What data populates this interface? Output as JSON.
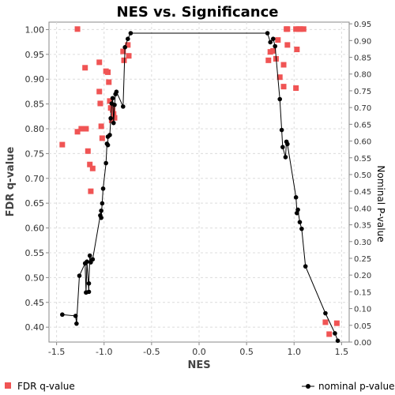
{
  "chart_data": {
    "type": "scatter",
    "title": "NES vs. Significance",
    "xlabel": "NES",
    "ylabel_left": "FDR q-value",
    "ylabel_right": "Nominal P-value",
    "xlim": [
      -1.58,
      1.58
    ],
    "ylim_left": [
      0.37,
      1.015
    ],
    "ylim_right": [
      0.0,
      0.955
    ],
    "x_ticks": [
      "-1.5",
      "-1.0",
      "-0.5",
      "0.0",
      "0.5",
      "1.0",
      "1.5"
    ],
    "y_ticks_left": [
      "0.40",
      "0.45",
      "0.50",
      "0.55",
      "0.60",
      "0.65",
      "0.70",
      "0.75",
      "0.80",
      "0.85",
      "0.90",
      "0.95",
      "1.00"
    ],
    "y_ticks_right": [
      "0.00",
      "0.05",
      "0.10",
      "0.15",
      "0.20",
      "0.25",
      "0.30",
      "0.35",
      "0.40",
      "0.45",
      "0.50",
      "0.55",
      "0.60",
      "0.65",
      "0.70",
      "0.75",
      "0.80",
      "0.85",
      "0.90",
      "0.95"
    ],
    "grid": true,
    "legend_position": "bottom",
    "colors": {
      "fdr": "#f05454",
      "nominal": "#000000"
    },
    "series": [
      {
        "name": "FDR q-value",
        "axis": "left",
        "marker": "square",
        "points": [
          [
            -1.44,
            0.768
          ],
          [
            -1.28,
            1.001
          ],
          [
            -1.28,
            0.794
          ],
          [
            -1.24,
            0.8
          ],
          [
            -1.2,
            0.923
          ],
          [
            -1.19,
            0.8
          ],
          [
            -1.17,
            0.755
          ],
          [
            -1.15,
            0.728
          ],
          [
            -1.14,
            0.674
          ],
          [
            -1.12,
            0.72
          ],
          [
            -1.05,
            0.934
          ],
          [
            -1.05,
            0.875
          ],
          [
            -1.04,
            0.851
          ],
          [
            -1.03,
            0.805
          ],
          [
            -1.02,
            0.781
          ],
          [
            -0.98,
            0.916
          ],
          [
            -0.96,
            0.914
          ],
          [
            -0.95,
            0.894
          ],
          [
            -0.94,
            0.856
          ],
          [
            -0.93,
            0.842
          ],
          [
            -0.92,
            0.817
          ],
          [
            -0.91,
            0.838
          ],
          [
            -0.9,
            0.83
          ],
          [
            -0.89,
            0.822
          ],
          [
            -0.8,
            0.956
          ],
          [
            -0.79,
            0.938
          ],
          [
            -0.75,
            0.969
          ],
          [
            -0.74,
            0.947
          ],
          [
            0.73,
            0.938
          ],
          [
            0.75,
            0.955
          ],
          [
            0.78,
            0.957
          ],
          [
            0.81,
            0.941
          ],
          [
            0.83,
            0.979
          ],
          [
            0.85,
            0.904
          ],
          [
            0.89,
            0.929
          ],
          [
            0.89,
            0.885
          ],
          [
            0.92,
            1.001
          ],
          [
            0.93,
            1.001
          ],
          [
            0.93,
            0.969
          ],
          [
            1.02,
            1.001
          ],
          [
            1.02,
            0.882
          ],
          [
            1.03,
            0.96
          ],
          [
            1.05,
            1.001
          ],
          [
            1.07,
            1.001
          ],
          [
            1.1,
            1.001
          ],
          [
            1.33,
            0.41
          ],
          [
            1.37,
            0.386
          ],
          [
            1.45,
            0.408
          ]
        ]
      },
      {
        "name": "nominal p-value",
        "axis": "right",
        "marker": "circle",
        "points": [
          [
            -1.44,
            0.082
          ],
          [
            -1.3,
            0.078
          ],
          [
            -1.29,
            0.055
          ],
          [
            -1.26,
            0.198
          ],
          [
            -1.2,
            0.235
          ],
          [
            -1.19,
            0.148
          ],
          [
            -1.18,
            0.24
          ],
          [
            -1.16,
            0.15
          ],
          [
            -1.16,
            0.175
          ],
          [
            -1.15,
            0.258
          ],
          [
            -1.14,
            0.238
          ],
          [
            -1.12,
            0.247
          ],
          [
            -1.04,
            0.378
          ],
          [
            -1.03,
            0.392
          ],
          [
            -1.03,
            0.371
          ],
          [
            -1.02,
            0.414
          ],
          [
            -1.01,
            0.458
          ],
          [
            -0.98,
            0.534
          ],
          [
            -0.97,
            0.592
          ],
          [
            -0.96,
            0.588
          ],
          [
            -0.96,
            0.613
          ],
          [
            -0.94,
            0.618
          ],
          [
            -0.93,
            0.668
          ],
          [
            -0.92,
            0.712
          ],
          [
            -0.91,
            0.728
          ],
          [
            -0.9,
            0.654
          ],
          [
            -0.89,
            0.708
          ],
          [
            -0.88,
            0.74
          ],
          [
            -0.87,
            0.747
          ],
          [
            -0.8,
            0.703
          ],
          [
            -0.78,
            0.88
          ],
          [
            -0.75,
            0.905
          ],
          [
            -0.72,
            0.922
          ],
          [
            0.72,
            0.922
          ],
          [
            0.75,
            0.895
          ],
          [
            0.78,
            0.905
          ],
          [
            0.8,
            0.883
          ],
          [
            0.85,
            0.725
          ],
          [
            0.87,
            0.633
          ],
          [
            0.88,
            0.582
          ],
          [
            0.91,
            0.552
          ],
          [
            0.92,
            0.598
          ],
          [
            0.93,
            0.591
          ],
          [
            1.02,
            0.432
          ],
          [
            1.03,
            0.385
          ],
          [
            1.04,
            0.395
          ],
          [
            1.06,
            0.358
          ],
          [
            1.08,
            0.338
          ],
          [
            1.12,
            0.226
          ],
          [
            1.33,
            0.086
          ],
          [
            1.43,
            0.026
          ],
          [
            1.46,
            0.004
          ]
        ]
      }
    ]
  }
}
